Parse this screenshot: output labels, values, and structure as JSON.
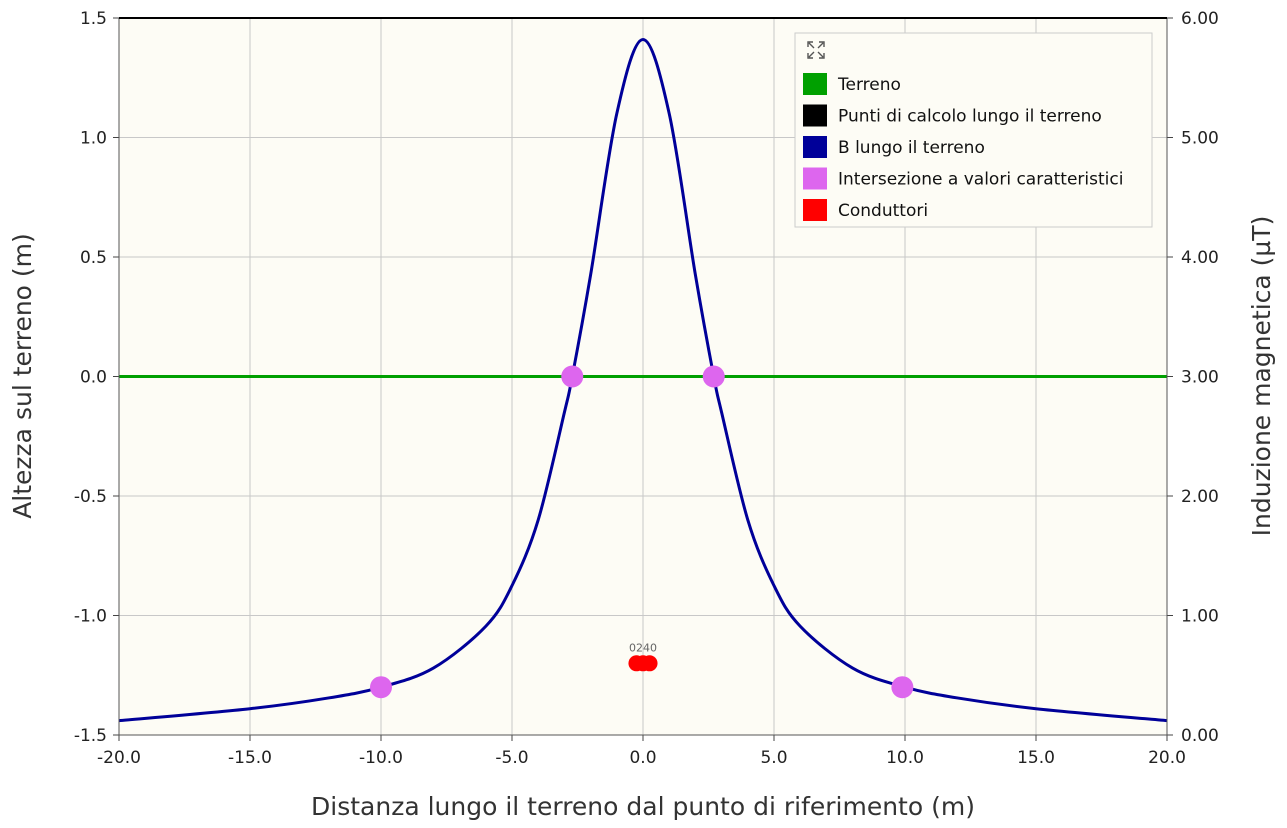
{
  "chart_data": {
    "type": "line",
    "xlabel": "Distanza lungo il terreno dal punto di riferimento (m)",
    "ylabel_left": "Altezza sul terreno (m)",
    "ylabel_right": "Induzione magnetica (µT)",
    "xlim": [
      -20,
      20
    ],
    "ylim_left": [
      -1.5,
      1.5
    ],
    "ylim_right": [
      0,
      6
    ],
    "x_ticks": [
      "-20.0",
      "-15.0",
      "-10.0",
      "-5.0",
      "0.0",
      "5.0",
      "10.0",
      "15.0",
      "20.0"
    ],
    "y_left_ticks": [
      "1.5",
      "1.0",
      "0.5",
      "0.0",
      "-0.5",
      "-1.0",
      "-1.5"
    ],
    "y_right_ticks": [
      "6.00",
      "5.00",
      "4.00",
      "3.00",
      "2.00",
      "1.00",
      "0.00"
    ],
    "grid": true,
    "legend_position": "top-right",
    "legend": [
      {
        "name": "Terreno",
        "color": "#00a000"
      },
      {
        "name": "Punti di calcolo lungo il terreno",
        "color": "#000000"
      },
      {
        "name": "B lungo il terreno",
        "color": "#000099"
      },
      {
        "name": "Intersezione a valori caratteristici",
        "color": "#dd66ee"
      },
      {
        "name": "Conduttori",
        "color": "#ff0000"
      }
    ],
    "terreno": {
      "x": [
        -20,
        20
      ],
      "y": [
        0,
        0
      ]
    },
    "b_curve": {
      "x": [
        -20,
        -15,
        -12,
        -10,
        -8,
        -6,
        -5,
        -4,
        -3,
        -2.7,
        -2,
        -1,
        0,
        1,
        2,
        2.7,
        3,
        4,
        5,
        6,
        8,
        10,
        12,
        15,
        20
      ],
      "b": [
        0.12,
        0.22,
        0.31,
        0.4,
        0.56,
        0.91,
        1.25,
        1.8,
        2.7,
        3.0,
        3.85,
        5.2,
        5.82,
        5.2,
        3.85,
        3.0,
        2.7,
        1.8,
        1.25,
        0.91,
        0.56,
        0.4,
        0.31,
        0.22,
        0.12
      ]
    },
    "intersections": [
      {
        "x": -2.7,
        "b": 3.0
      },
      {
        "x": 2.7,
        "b": 3.0
      },
      {
        "x": -10,
        "b": 0.4
      },
      {
        "x": 9.9,
        "b": 0.4
      }
    ],
    "conductors": [
      {
        "x": -0.25,
        "y": -1.2,
        "label": "0"
      },
      {
        "x": 0.0,
        "y": -1.2,
        "label": "1"
      },
      {
        "x": 0.25,
        "y": -1.2,
        "label": "2"
      }
    ],
    "conductor_label": "0240"
  }
}
